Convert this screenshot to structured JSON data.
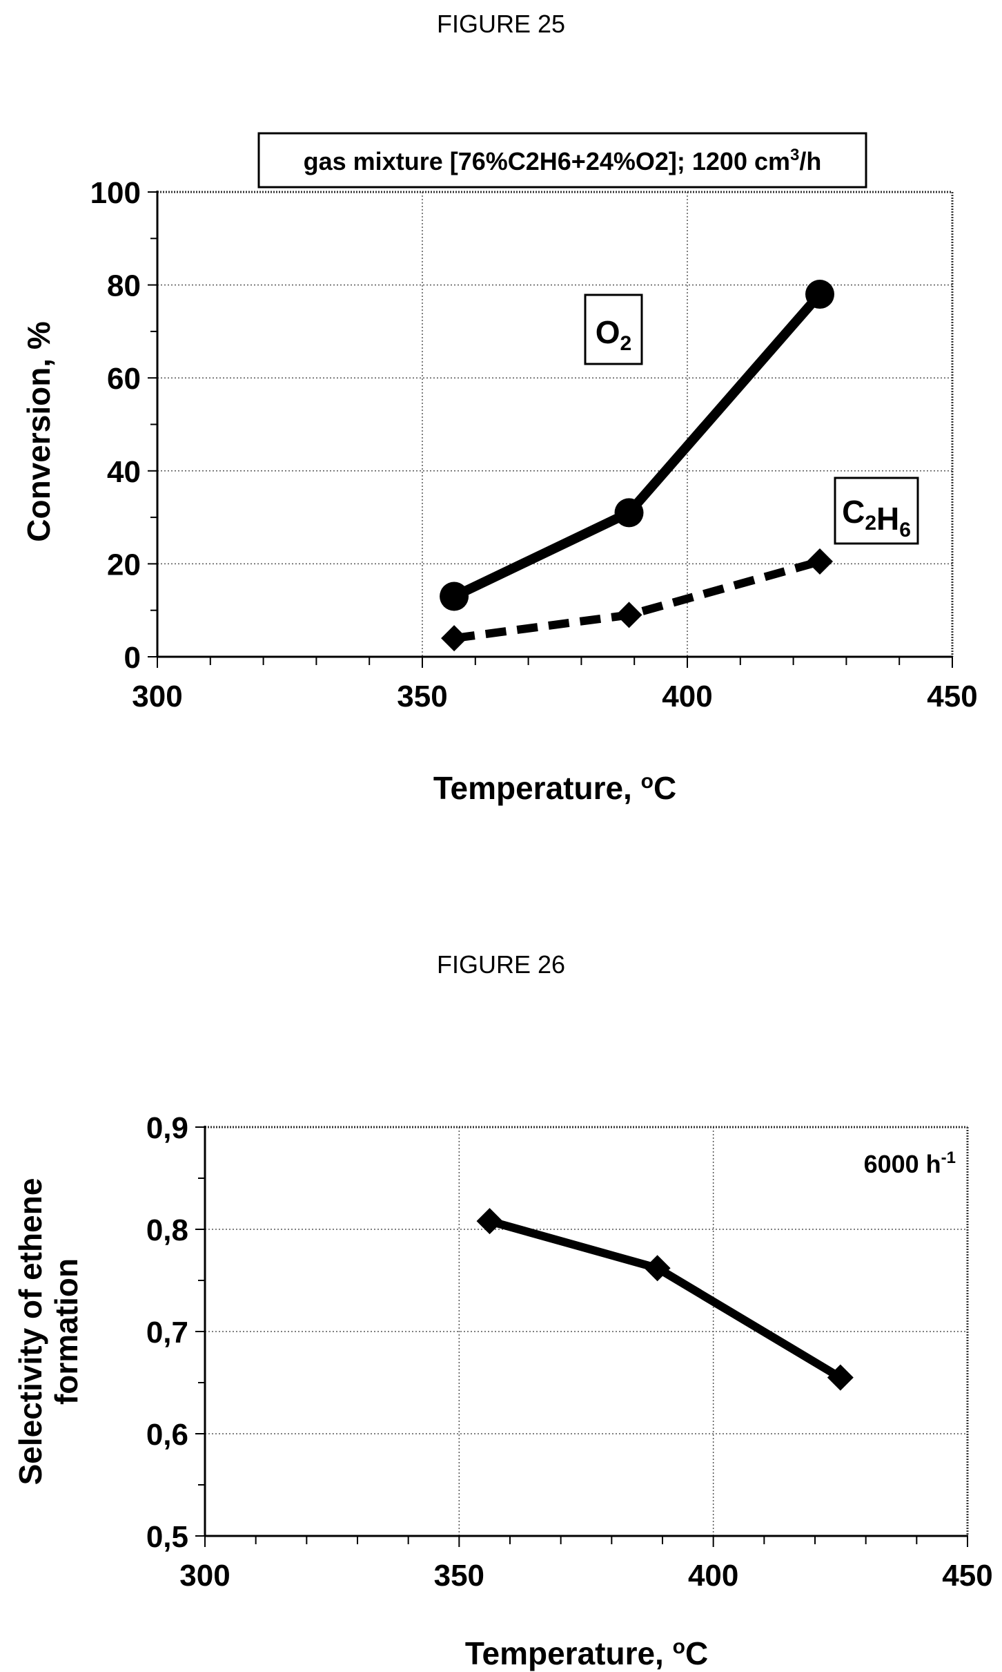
{
  "figures": {
    "fig25_title": "FIGURE 25",
    "fig26_title": "FIGURE 26"
  },
  "chart_data": [
    {
      "type": "line",
      "title": "gas mixture [76%C2H6+24%O2]; 1200 cm³/h",
      "xlabel": "Temperature, °C",
      "ylabel": "Conversion, %",
      "xlim": [
        300,
        450
      ],
      "ylim": [
        0,
        100
      ],
      "x_ticks": [
        "300",
        "350",
        "400",
        "450"
      ],
      "y_ticks": [
        "0",
        "20",
        "40",
        "60",
        "80",
        "100"
      ],
      "grid": true,
      "series": [
        {
          "name": "O₂",
          "marker": "circle",
          "line": "solid",
          "x": [
            356,
            389,
            425
          ],
          "y": [
            13,
            31,
            78
          ]
        },
        {
          "name": "C₂H₆",
          "marker": "diamond",
          "line": "dashed",
          "x": [
            356,
            389,
            425
          ],
          "y": [
            4,
            9,
            20.5
          ]
        }
      ]
    },
    {
      "type": "line",
      "annotation": "6000 h⁻¹",
      "xlabel": "Temperature, °C",
      "ylabel": "Selectivity of ethene formation",
      "xlim": [
        300,
        450
      ],
      "ylim": [
        0.5,
        0.9
      ],
      "x_ticks": [
        "300",
        "350",
        "400",
        "450"
      ],
      "y_ticks": [
        "0,5",
        "0,6",
        "0,7",
        "0,8",
        "0,9"
      ],
      "grid": true,
      "series": [
        {
          "marker": "diamond",
          "line": "solid",
          "x": [
            356,
            389,
            425
          ],
          "y": [
            0.808,
            0.762,
            0.655
          ]
        }
      ]
    }
  ]
}
